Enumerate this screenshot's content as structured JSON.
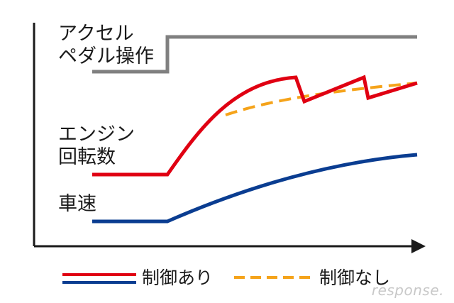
{
  "labels": {
    "accel_line1": "アクセル",
    "accel_line2": "ペダル操作",
    "engine_line1": "エンジン",
    "engine_line2": "回転数",
    "speed": "車速"
  },
  "legend": {
    "with_control": "制御あり",
    "without_control": "制御なし"
  },
  "watermark": "response.",
  "colors": {
    "axis": "#1a1a1a",
    "pedal": "#808080",
    "engine_controlled": "#e00012",
    "engine_uncontrolled": "#f5a31a",
    "speed": "#0a3d91"
  }
}
